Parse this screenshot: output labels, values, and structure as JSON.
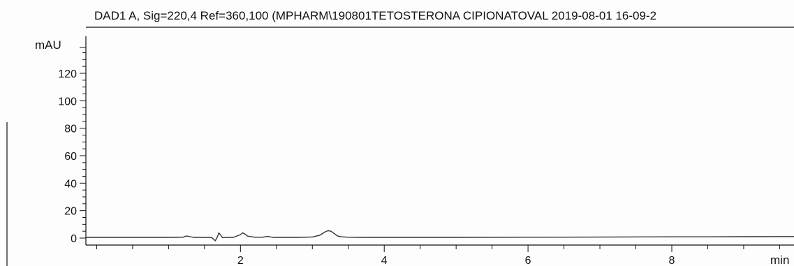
{
  "chart_data": {
    "type": "line",
    "title": "DAD1 A, Sig=220,4 Ref=360,100 (MPHARM\\190801TETOSTERONA CIPIONATOVAL 2019-08-01 16-09-2",
    "ylabel": "mAU",
    "xlabel": "min",
    "xlim": [
      -0.15,
      9.7
    ],
    "ylim": [
      -3,
      140
    ],
    "x_ticks": [
      2,
      4,
      6,
      8
    ],
    "y_ticks": [
      0,
      20,
      40,
      60,
      80,
      100,
      120
    ],
    "x_minor_step": 0.5,
    "y_minor_step": 5,
    "grid": false,
    "series": [
      {
        "color": "#333333",
        "x": [
          -0.15,
          0.5,
          1.0,
          1.2,
          1.25,
          1.3,
          1.35,
          1.45,
          1.6,
          1.65,
          1.68,
          1.7,
          1.72,
          1.75,
          1.8,
          1.9,
          2.0,
          2.03,
          2.06,
          2.1,
          2.2,
          2.3,
          2.38,
          2.45,
          2.6,
          2.8,
          3.0,
          3.1,
          3.18,
          3.22,
          3.26,
          3.3,
          3.35,
          3.4,
          3.5,
          3.7,
          4.0,
          5.0,
          6.0,
          7.0,
          8.0,
          8.5,
          9.0,
          9.7
        ],
        "y": [
          0.5,
          0.5,
          0.5,
          0.6,
          1.6,
          1.0,
          0.5,
          0.5,
          0.4,
          -2.0,
          1.0,
          3.8,
          2.5,
          0.3,
          0.4,
          0.5,
          2.5,
          3.8,
          3.0,
          1.4,
          0.6,
          0.6,
          1.2,
          0.5,
          0.5,
          0.5,
          0.8,
          2.0,
          4.6,
          5.4,
          5.0,
          3.4,
          1.6,
          0.9,
          0.6,
          0.5,
          0.5,
          0.5,
          0.6,
          0.7,
          0.9,
          0.9,
          1.0,
          1.1
        ]
      }
    ]
  }
}
